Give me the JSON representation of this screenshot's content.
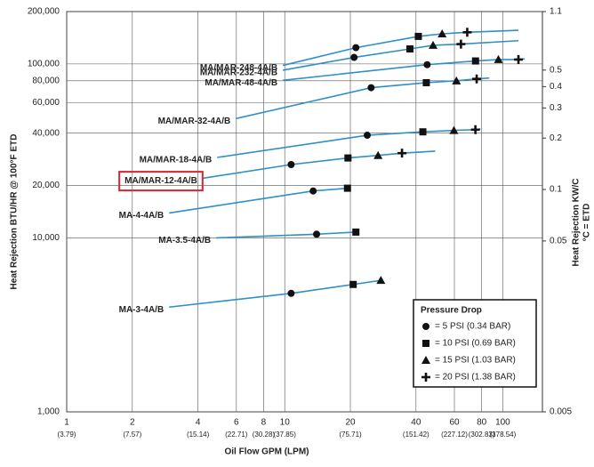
{
  "chart_data": {
    "type": "line",
    "y_label": "Heat Rejection BTU/HR @ 100°F ETD",
    "y2_label_lines": [
      "Heat Rejection KW/C",
      "°C = ETD"
    ],
    "x_label": "Oil Flow GPM (LPM)",
    "log_x": true,
    "log_y": true,
    "grid": true,
    "line_color": "#2f8fc8",
    "marker_color": "#111111",
    "highlight_color": "#d9252f",
    "xlim": [
      1,
      152
    ],
    "xticks": [
      1,
      2,
      4,
      6,
      8,
      10,
      20,
      40,
      60,
      80,
      100
    ],
    "xticks_secondary": [
      {
        "value": 1,
        "label": "(3.79)"
      },
      {
        "value": 2,
        "label": "(7.57)"
      },
      {
        "value": 4,
        "label": "(15.14)"
      },
      {
        "value": 6,
        "label": "(22.71)"
      },
      {
        "value": 8,
        "label": "(30.28)"
      },
      {
        "value": 10,
        "label": "(37.85)"
      },
      {
        "value": 20,
        "label": "(75.71)"
      },
      {
        "value": 40,
        "label": "(151.42)"
      },
      {
        "value": 60,
        "label": "(227.12)"
      },
      {
        "value": 80,
        "label": "(302.83)"
      },
      {
        "value": 100,
        "label": "(378.54)"
      }
    ],
    "ylim": [
      1000,
      200000
    ],
    "yticks": [
      {
        "value": 200000,
        "label": "200,000"
      },
      {
        "value": 100000,
        "label": "100,000"
      },
      {
        "value": 80000,
        "label": "80,000"
      },
      {
        "value": 60000,
        "label": "60,000"
      },
      {
        "value": 40000,
        "label": "40,000"
      },
      {
        "value": 20000,
        "label": "20,000"
      },
      {
        "value": 10000,
        "label": "10,000"
      },
      {
        "value": 1000,
        "label": "1,000"
      }
    ],
    "y2lim": [
      0.005,
      1.1
    ],
    "y2ticks": [
      1.1,
      0.5,
      0.4,
      0.3,
      0.2,
      0.1,
      0.05,
      0.005
    ],
    "series": [
      {
        "name": "MA/MAR-248-4A/B",
        "x": [
          9.8,
          21.2,
          41,
          52.7,
          68.7,
          118
        ],
        "values": [
          98000,
          124000,
          144000,
          149000,
          152000,
          156000
        ],
        "markers": [
          null,
          "circle",
          "square",
          "triangle",
          "plus",
          null
        ]
      },
      {
        "name": "MA/MAR-232-4A/B",
        "x": [
          9.8,
          20.8,
          37.5,
          47.9,
          64.3,
          118
        ],
        "values": [
          92000,
          109000,
          122000,
          128000,
          130000,
          136000
        ],
        "markers": [
          null,
          "circle",
          "square",
          "triangle",
          "plus",
          null
        ]
      },
      {
        "name": "MA/MAR-48-4A/B",
        "x": [
          9.8,
          45,
          75,
          95.5,
          118,
          126
        ],
        "values": [
          80500,
          99000,
          104000,
          106000,
          106000,
          107000
        ],
        "markers": [
          null,
          "circle",
          "square",
          "triangle",
          "plus",
          null
        ]
      },
      {
        "name": "MA/MAR-32-4A/B",
        "x": [
          5.97,
          24.9,
          44.6,
          61.3,
          75.9,
          86.7
        ],
        "values": [
          48500,
          73000,
          78000,
          80000,
          82000,
          83000
        ],
        "markers": [
          null,
          "circle",
          "square",
          "triangle",
          "plus",
          null
        ]
      },
      {
        "name": "MA/MAR-18-4A/B",
        "x": [
          4.9,
          23.9,
          43,
          59.7,
          74.9,
          79
        ],
        "values": [
          29000,
          38900,
          40700,
          41500,
          41900,
          42300
        ],
        "markers": [
          null,
          "circle",
          "square",
          "triangle",
          "plus",
          null
        ]
      },
      {
        "name": "MA/MAR-12-4A/B",
        "highlighted": true,
        "x": [
          4.2,
          10.7,
          19.5,
          26.8,
          34.5,
          49
        ],
        "values": [
          22000,
          26400,
          28800,
          29800,
          30700,
          31500
        ],
        "markers": [
          null,
          "circle",
          "square",
          "triangle",
          "plus",
          null
        ]
      },
      {
        "name": "MA-4-4A/B",
        "x": [
          2.95,
          13.5,
          19.4
        ],
        "values": [
          13900,
          18600,
          19300
        ],
        "markers": [
          null,
          "circle",
          "square"
        ]
      },
      {
        "name": "MA-3.5-4A/B",
        "x": [
          4.85,
          14,
          21.2
        ],
        "values": [
          10000,
          10500,
          10800
        ],
        "markers": [
          null,
          "circle",
          "square"
        ]
      },
      {
        "name": "MA-3-4A/B",
        "x": [
          2.95,
          10.7,
          20.6,
          27.6
        ],
        "values": [
          4000,
          4800,
          5400,
          5700
        ],
        "markers": [
          null,
          "circle",
          "square",
          "triangle"
        ]
      }
    ],
    "legend": {
      "title": "Pressure Drop",
      "position": "lower right",
      "entries": [
        {
          "marker": "circle",
          "label": "= 5 PSI (0.34 BAR)"
        },
        {
          "marker": "square",
          "label": "= 10 PSI (0.69 BAR)"
        },
        {
          "marker": "triangle",
          "label": "= 15 PSI (1.03 BAR)"
        },
        {
          "marker": "plus",
          "label": "= 20 PSI (1.38 BAR)"
        }
      ]
    }
  }
}
